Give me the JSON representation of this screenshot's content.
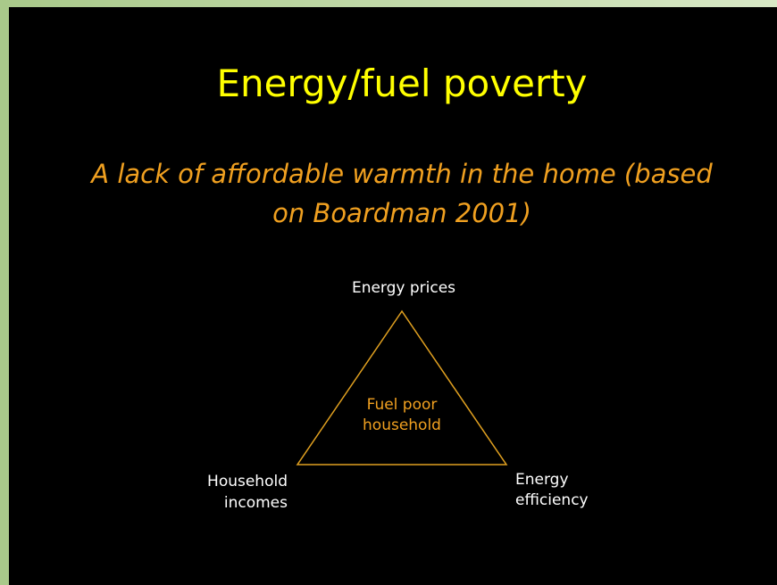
{
  "title": "Energy/fuel poverty",
  "subtitle": [
    "A lack of affordable warmth in the home (based",
    "on Boardman 2001)"
  ],
  "nodes": [
    {
      "label": [
        "Energy prices"
      ]
    },
    {
      "label": [
        "Household",
        "incomes"
      ]
    },
    {
      "label": [
        "Energy",
        "efficiency"
      ]
    }
  ],
  "center": {
    "label": [
      "Fuel poor",
      "household"
    ]
  }
}
